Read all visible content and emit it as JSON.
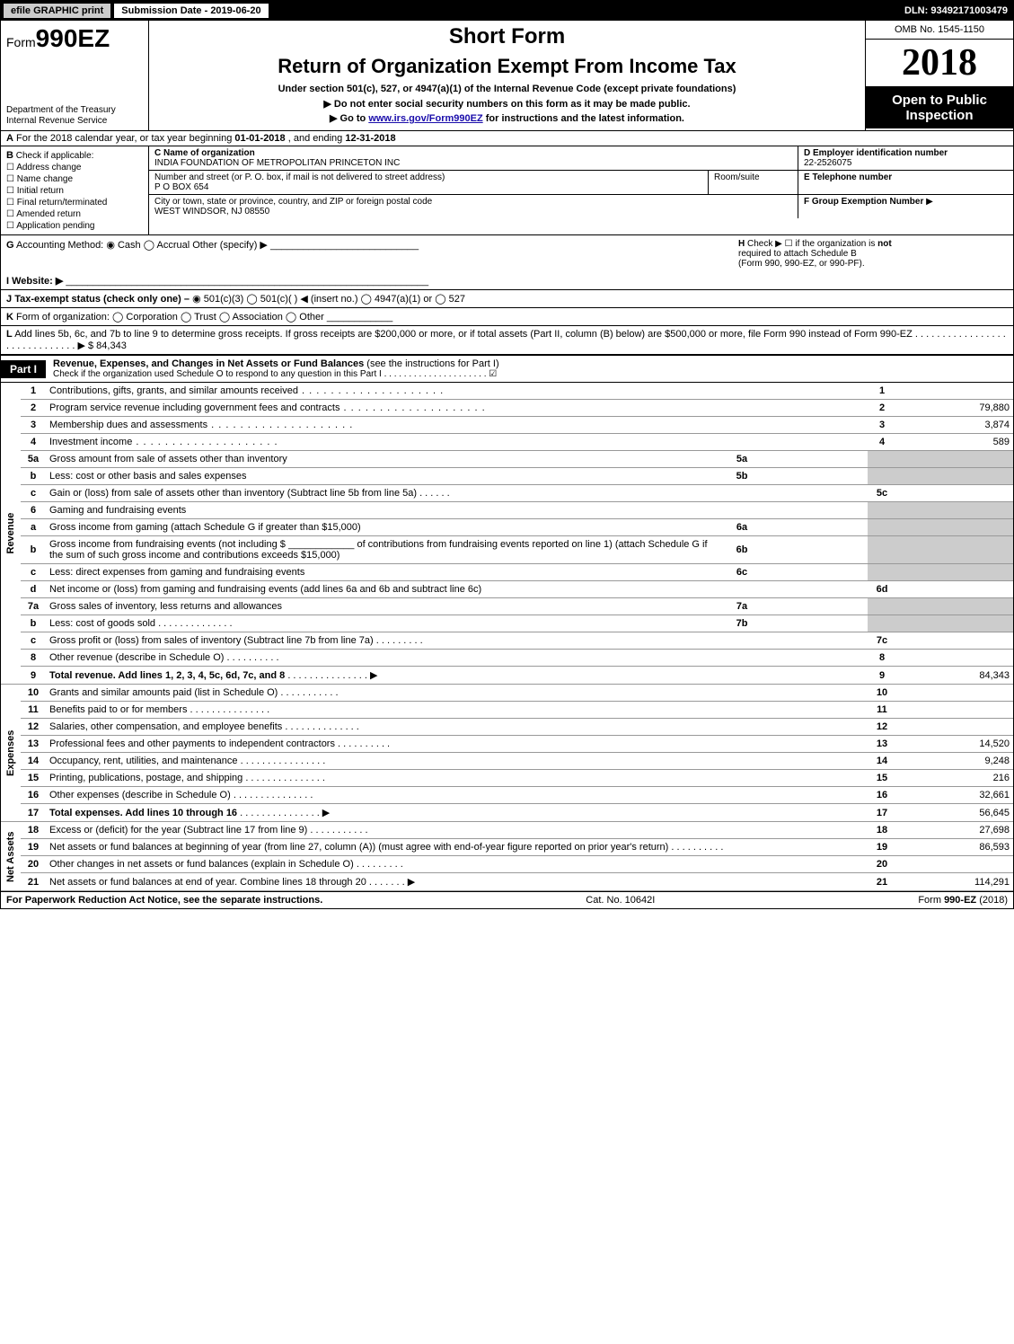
{
  "topbar": {
    "efile_btn": "efile GRAPHIC print",
    "submission": "Submission Date - 2019-06-20",
    "dln": "DLN: 93492171003479"
  },
  "header": {
    "form_prefix": "Form",
    "form_number": "990EZ",
    "dept1": "Department of the Treasury",
    "dept2": "Internal Revenue Service",
    "short_form": "Short Form",
    "title": "Return of Organization Exempt From Income Tax",
    "subcaption": "Under section 501(c), 527, or 4947(a)(1) of the Internal Revenue Code (except private foundations)",
    "instr1_pre": "▶ Do not enter social security numbers on this form as it may be made public.",
    "instr2_pre": "▶ Go to ",
    "instr2_link": "www.irs.gov/Form990EZ",
    "instr2_post": " for instructions and the latest information.",
    "omb": "OMB No. 1545-1150",
    "year": "2018",
    "open_public_1": "Open to Public",
    "open_public_2": "Inspection"
  },
  "row_a": {
    "label": "A",
    "text1": "For the 2018 calendar year, or tax year beginning ",
    "begin_date": "01-01-2018",
    "text2": ", and ending ",
    "end_date": "12-31-2018"
  },
  "col_b": {
    "label": "B",
    "heading": "Check if applicable:",
    "opts": [
      "Address change",
      "Name change",
      "Initial return",
      "Final return/terminated",
      "Amended return",
      "Application pending"
    ]
  },
  "col_c": {
    "c_label": "C",
    "c_heading": "Name of organization",
    "org_name": "INDIA FOUNDATION OF METROPOLITAN PRINCETON INC",
    "street_heading": "Number and street (or P. O. box, if mail is not delivered to street address)",
    "street": "P O BOX 654",
    "room_heading": "Room/suite",
    "city_heading": "City or town, state or province, country, and ZIP or foreign postal code",
    "city": "WEST WINDSOR, NJ  08550"
  },
  "col_d": {
    "d_label": "D",
    "d_heading": "Employer identification number",
    "ein": "22-2526075",
    "e_label": "E",
    "e_heading": "Telephone number",
    "f_label": "F",
    "f_heading": "Group Exemption Number",
    "f_arrow": "▶"
  },
  "gh": {
    "g_label": "G",
    "g_text": "Accounting Method:",
    "g_cash": "Cash",
    "g_accrual": "Accrual",
    "g_other": "Other (specify) ▶",
    "h_label": "H",
    "h_text1": "Check ▶",
    "h_text2": "if the organization is",
    "h_not": "not",
    "h_text3": "required to attach Schedule B",
    "h_text4": "(Form 990, 990-EZ, or 990-PF)."
  },
  "i_line": {
    "label": "I",
    "text": "Website: ▶"
  },
  "j_line": {
    "label": "J",
    "text": "Tax-exempt status (check only one) –",
    "o1": "501(c)(3)",
    "o2": "501(c)(  ) ◀ (insert no.)",
    "o3": "4947(a)(1) or",
    "o4": "527"
  },
  "k_line": {
    "label": "K",
    "text": "Form of organization:",
    "o1": "Corporation",
    "o2": "Trust",
    "o3": "Association",
    "o4": "Other"
  },
  "l_line": {
    "label": "L",
    "text1": "Add lines 5b, 6c, and 7b to line 9 to determine gross receipts. If gross receipts are $200,000 or more, or if total assets (Part II, column (B) below) are $500,000 or more, file Form 990 instead of Form 990-EZ",
    "arrow": "▶",
    "amount": "$ 84,343"
  },
  "part1": {
    "label": "Part I",
    "title": "Revenue, Expenses, and Changes in Net Assets or Fund Balances",
    "sub1": "(see the instructions for Part I)",
    "sub2": "Check if the organization used Schedule O to respond to any question in this Part I"
  },
  "side_labels": {
    "revenue": "Revenue",
    "expenses": "Expenses",
    "netassets": "Net Assets"
  },
  "lines": {
    "l1": {
      "n": "1",
      "d": "Contributions, gifts, grants, and similar amounts received",
      "box": "1",
      "amt": ""
    },
    "l2": {
      "n": "2",
      "d": "Program service revenue including government fees and contracts",
      "box": "2",
      "amt": "79,880"
    },
    "l3": {
      "n": "3",
      "d": "Membership dues and assessments",
      "box": "3",
      "amt": "3,874"
    },
    "l4": {
      "n": "4",
      "d": "Investment income",
      "box": "4",
      "amt": "589"
    },
    "l5a": {
      "n": "5a",
      "d": "Gross amount from sale of assets other than inventory",
      "mid": "5a"
    },
    "l5b": {
      "n": "b",
      "d": "Less: cost or other basis and sales expenses",
      "mid": "5b"
    },
    "l5c": {
      "n": "c",
      "d": "Gain or (loss) from sale of assets other than inventory (Subtract line 5b from line 5a)",
      "box": "5c",
      "amt": ""
    },
    "l6": {
      "n": "6",
      "d": "Gaming and fundraising events"
    },
    "l6a": {
      "n": "a",
      "d": "Gross income from gaming (attach Schedule G if greater than $15,000)",
      "mid": "6a"
    },
    "l6b": {
      "n": "b",
      "d1": "Gross income from fundraising events (not including $ ",
      "d2": " of contributions from fundraising events reported on line 1) (attach Schedule G if the sum of such gross income and contributions exceeds $15,000)",
      "mid": "6b"
    },
    "l6c": {
      "n": "c",
      "d": "Less: direct expenses from gaming and fundraising events",
      "mid": "6c"
    },
    "l6d": {
      "n": "d",
      "d": "Net income or (loss) from gaming and fundraising events (add lines 6a and 6b and subtract line 6c)",
      "box": "6d",
      "amt": ""
    },
    "l7a": {
      "n": "7a",
      "d": "Gross sales of inventory, less returns and allowances",
      "mid": "7a"
    },
    "l7b": {
      "n": "b",
      "d": "Less: cost of goods sold",
      "mid": "7b"
    },
    "l7c": {
      "n": "c",
      "d": "Gross profit or (loss) from sales of inventory (Subtract line 7b from line 7a)",
      "box": "7c",
      "amt": ""
    },
    "l8": {
      "n": "8",
      "d": "Other revenue (describe in Schedule O)",
      "box": "8",
      "amt": ""
    },
    "l9": {
      "n": "9",
      "d": "Total revenue. Add lines 1, 2, 3, 4, 5c, 6d, 7c, and 8",
      "box": "9",
      "amt": "84,343"
    },
    "l10": {
      "n": "10",
      "d": "Grants and similar amounts paid (list in Schedule O)",
      "box": "10",
      "amt": ""
    },
    "l11": {
      "n": "11",
      "d": "Benefits paid to or for members",
      "box": "11",
      "amt": ""
    },
    "l12": {
      "n": "12",
      "d": "Salaries, other compensation, and employee benefits",
      "box": "12",
      "amt": ""
    },
    "l13": {
      "n": "13",
      "d": "Professional fees and other payments to independent contractors",
      "box": "13",
      "amt": "14,520"
    },
    "l14": {
      "n": "14",
      "d": "Occupancy, rent, utilities, and maintenance",
      "box": "14",
      "amt": "9,248"
    },
    "l15": {
      "n": "15",
      "d": "Printing, publications, postage, and shipping",
      "box": "15",
      "amt": "216"
    },
    "l16": {
      "n": "16",
      "d": "Other expenses (describe in Schedule O)",
      "box": "16",
      "amt": "32,661"
    },
    "l17": {
      "n": "17",
      "d": "Total expenses. Add lines 10 through 16",
      "box": "17",
      "amt": "56,645"
    },
    "l18": {
      "n": "18",
      "d": "Excess or (deficit) for the year (Subtract line 17 from line 9)",
      "box": "18",
      "amt": "27,698"
    },
    "l19": {
      "n": "19",
      "d": "Net assets or fund balances at beginning of year (from line 27, column (A)) (must agree with end-of-year figure reported on prior year's return)",
      "box": "19",
      "amt": "86,593"
    },
    "l20": {
      "n": "20",
      "d": "Other changes in net assets or fund balances (explain in Schedule O)",
      "box": "20",
      "amt": ""
    },
    "l21": {
      "n": "21",
      "d": "Net assets or fund balances at end of year. Combine lines 18 through 20",
      "box": "21",
      "amt": "114,291"
    }
  },
  "footer": {
    "left": "For Paperwork Reduction Act Notice, see the separate instructions.",
    "center": "Cat. No. 10642I",
    "right": "Form 990-EZ (2018)"
  },
  "colors": {
    "black": "#000000",
    "white": "#ffffff",
    "shade": "#cccccc",
    "link": "#1a0dab"
  }
}
